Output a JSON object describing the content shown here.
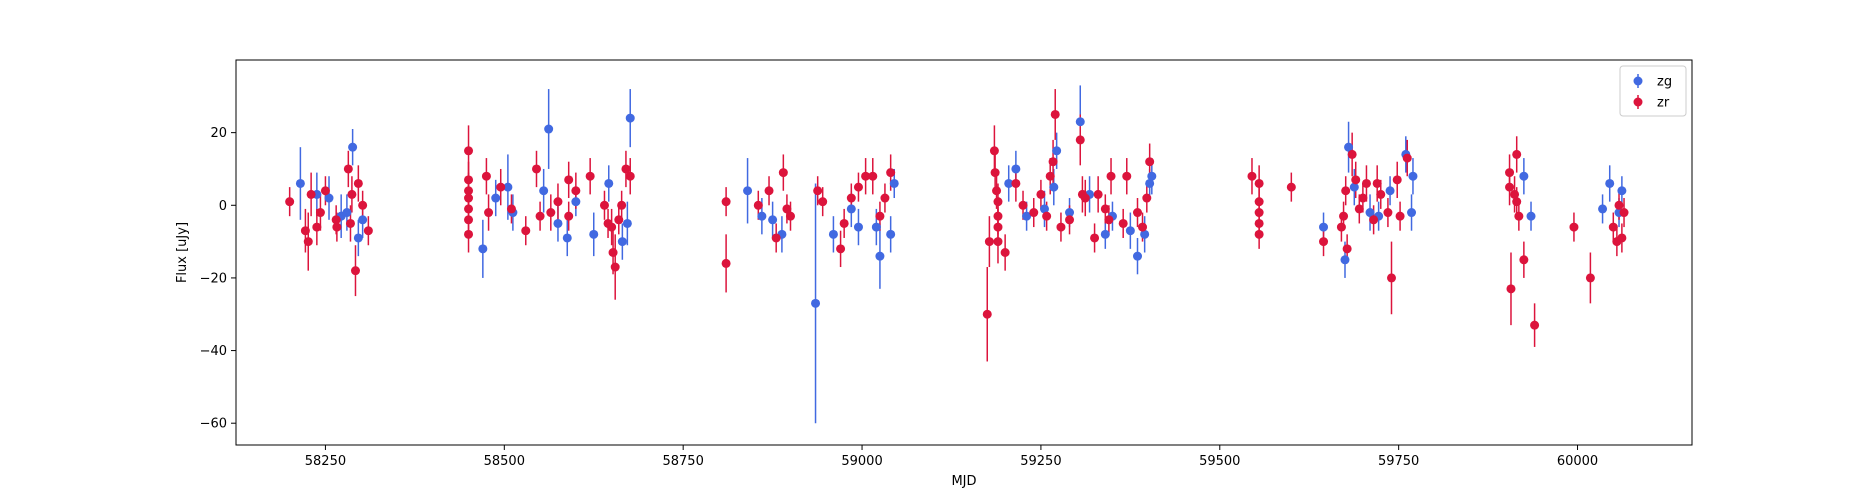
{
  "chart_data": {
    "type": "scatter",
    "title": "",
    "xlabel": "MJD",
    "ylabel": "Flux [uJy]",
    "xlim": [
      58125,
      60160
    ],
    "ylim": [
      -66,
      40
    ],
    "xticks": [
      58250,
      58500,
      58750,
      59000,
      59250,
      59500,
      59750,
      60000
    ],
    "yticks": [
      20,
      0,
      -20,
      -40,
      -60
    ],
    "grid": false,
    "legend_position": "top-right",
    "error_bars": true,
    "series": [
      {
        "name": "zg",
        "color": "#4169e1",
        "points": [
          {
            "x": 58215,
            "y": 6,
            "err": 10
          },
          {
            "x": 58238,
            "y": 3,
            "err": 6
          },
          {
            "x": 58255,
            "y": 2,
            "err": 6
          },
          {
            "x": 58272,
            "y": -3,
            "err": 6
          },
          {
            "x": 58280,
            "y": -2,
            "err": 5
          },
          {
            "x": 58288,
            "y": 16,
            "err": 5
          },
          {
            "x": 58296,
            "y": -9,
            "err": 5
          },
          {
            "x": 58302,
            "y": -4,
            "err": 5
          },
          {
            "x": 58470,
            "y": -12,
            "err": 8
          },
          {
            "x": 58488,
            "y": 2,
            "err": 5
          },
          {
            "x": 58505,
            "y": 5,
            "err": 9
          },
          {
            "x": 58512,
            "y": -2,
            "err": 5
          },
          {
            "x": 58555,
            "y": 4,
            "err": 6
          },
          {
            "x": 58562,
            "y": 21,
            "err": 11
          },
          {
            "x": 58575,
            "y": -5,
            "err": 5
          },
          {
            "x": 58588,
            "y": -9,
            "err": 5
          },
          {
            "x": 58600,
            "y": 1,
            "err": 4
          },
          {
            "x": 58625,
            "y": -8,
            "err": 6
          },
          {
            "x": 58646,
            "y": 6,
            "err": 5
          },
          {
            "x": 58665,
            "y": -10,
            "err": 5
          },
          {
            "x": 58672,
            "y": -5,
            "err": 6
          },
          {
            "x": 58676,
            "y": 24,
            "err": 8
          },
          {
            "x": 58840,
            "y": 4,
            "err": 9
          },
          {
            "x": 58860,
            "y": -3,
            "err": 5
          },
          {
            "x": 58875,
            "y": -4,
            "err": 5
          },
          {
            "x": 58888,
            "y": -8,
            "err": 5
          },
          {
            "x": 58935,
            "y": -27,
            "err": 33
          },
          {
            "x": 58960,
            "y": -8,
            "err": 5
          },
          {
            "x": 58985,
            "y": -1,
            "err": 5
          },
          {
            "x": 58995,
            "y": -6,
            "err": 5
          },
          {
            "x": 59020,
            "y": -6,
            "err": 5
          },
          {
            "x": 59025,
            "y": -14,
            "err": 9
          },
          {
            "x": 59040,
            "y": -8,
            "err": 5
          },
          {
            "x": 59045,
            "y": 6,
            "err": 4
          },
          {
            "x": 59205,
            "y": 6,
            "err": 5
          },
          {
            "x": 59215,
            "y": 10,
            "err": 5
          },
          {
            "x": 59230,
            "y": -3,
            "err": 4
          },
          {
            "x": 59255,
            "y": -1,
            "err": 5
          },
          {
            "x": 59268,
            "y": 5,
            "err": 5
          },
          {
            "x": 59272,
            "y": 15,
            "err": 5
          },
          {
            "x": 59290,
            "y": -2,
            "err": 4
          },
          {
            "x": 59305,
            "y": 23,
            "err": 10
          },
          {
            "x": 59318,
            "y": 3,
            "err": 5
          },
          {
            "x": 59340,
            "y": -8,
            "err": 4
          },
          {
            "x": 59350,
            "y": -3,
            "err": 4
          },
          {
            "x": 59375,
            "y": -7,
            "err": 5
          },
          {
            "x": 59385,
            "y": -14,
            "err": 5
          },
          {
            "x": 59395,
            "y": -8,
            "err": 5
          },
          {
            "x": 59402,
            "y": 6,
            "err": 4
          },
          {
            "x": 59405,
            "y": 8,
            "err": 5
          },
          {
            "x": 59645,
            "y": -6,
            "err": 4
          },
          {
            "x": 59675,
            "y": -15,
            "err": 5
          },
          {
            "x": 59680,
            "y": 16,
            "err": 7
          },
          {
            "x": 59688,
            "y": 5,
            "err": 5
          },
          {
            "x": 59710,
            "y": -2,
            "err": 5
          },
          {
            "x": 59722,
            "y": -3,
            "err": 4
          },
          {
            "x": 59738,
            "y": 4,
            "err": 4
          },
          {
            "x": 59760,
            "y": 14,
            "err": 5
          },
          {
            "x": 59768,
            "y": -2,
            "err": 5
          },
          {
            "x": 59770,
            "y": 8,
            "err": 5
          },
          {
            "x": 59925,
            "y": 8,
            "err": 5
          },
          {
            "x": 59935,
            "y": -3,
            "err": 4
          },
          {
            "x": 60035,
            "y": -1,
            "err": 4
          },
          {
            "x": 60045,
            "y": 6,
            "err": 5
          },
          {
            "x": 60058,
            "y": -2,
            "err": 4
          },
          {
            "x": 60062,
            "y": 4,
            "err": 4
          }
        ]
      },
      {
        "name": "zr",
        "color": "#dc143c",
        "points": [
          {
            "x": 58200,
            "y": 1,
            "err": 4
          },
          {
            "x": 58222,
            "y": -7,
            "err": 6
          },
          {
            "x": 58226,
            "y": -10,
            "err": 8
          },
          {
            "x": 58230,
            "y": 3,
            "err": 6
          },
          {
            "x": 58238,
            "y": -6,
            "err": 5
          },
          {
            "x": 58243,
            "y": -2,
            "err": 5
          },
          {
            "x": 58250,
            "y": 4,
            "err": 4
          },
          {
            "x": 58265,
            "y": -4,
            "err": 4
          },
          {
            "x": 58266,
            "y": -6,
            "err": 4
          },
          {
            "x": 58282,
            "y": 10,
            "err": 5
          },
          {
            "x": 58285,
            "y": -5,
            "err": 5
          },
          {
            "x": 58287,
            "y": 3,
            "err": 5
          },
          {
            "x": 58292,
            "y": -18,
            "err": 7
          },
          {
            "x": 58296,
            "y": 6,
            "err": 5
          },
          {
            "x": 58302,
            "y": 0,
            "err": 4
          },
          {
            "x": 58310,
            "y": -7,
            "err": 4
          },
          {
            "x": 58450,
            "y": 15,
            "err": 7
          },
          {
            "x": 58450,
            "y": 7,
            "err": 5
          },
          {
            "x": 58450,
            "y": 4,
            "err": 5
          },
          {
            "x": 58450,
            "y": 2,
            "err": 4
          },
          {
            "x": 58450,
            "y": -1,
            "err": 4
          },
          {
            "x": 58450,
            "y": -4,
            "err": 4
          },
          {
            "x": 58450,
            "y": -8,
            "err": 5
          },
          {
            "x": 58475,
            "y": 8,
            "err": 5
          },
          {
            "x": 58478,
            "y": -2,
            "err": 5
          },
          {
            "x": 58495,
            "y": 5,
            "err": 5
          },
          {
            "x": 58510,
            "y": -1,
            "err": 4
          },
          {
            "x": 58530,
            "y": -7,
            "err": 4
          },
          {
            "x": 58545,
            "y": 10,
            "err": 5
          },
          {
            "x": 58550,
            "y": -3,
            "err": 4
          },
          {
            "x": 58565,
            "y": -2,
            "err": 5
          },
          {
            "x": 58575,
            "y": 1,
            "err": 5
          },
          {
            "x": 58590,
            "y": -3,
            "err": 4
          },
          {
            "x": 58590,
            "y": 7,
            "err": 5
          },
          {
            "x": 58600,
            "y": 4,
            "err": 5
          },
          {
            "x": 58620,
            "y": 8,
            "err": 5
          },
          {
            "x": 58640,
            "y": 0,
            "err": 4
          },
          {
            "x": 58645,
            "y": -5,
            "err": 4
          },
          {
            "x": 58650,
            "y": -6,
            "err": 5
          },
          {
            "x": 58652,
            "y": -13,
            "err": 6
          },
          {
            "x": 58655,
            "y": -17,
            "err": 9
          },
          {
            "x": 58660,
            "y": -4,
            "err": 4
          },
          {
            "x": 58664,
            "y": 0,
            "err": 4
          },
          {
            "x": 58670,
            "y": 10,
            "err": 5
          },
          {
            "x": 58676,
            "y": 8,
            "err": 5
          },
          {
            "x": 58810,
            "y": 1,
            "err": 4
          },
          {
            "x": 58810,
            "y": -16,
            "err": 8
          },
          {
            "x": 58855,
            "y": 0,
            "err": 4
          },
          {
            "x": 58870,
            "y": 4,
            "err": 4
          },
          {
            "x": 58880,
            "y": -9,
            "err": 4
          },
          {
            "x": 58890,
            "y": 9,
            "err": 5
          },
          {
            "x": 58895,
            "y": -1,
            "err": 4
          },
          {
            "x": 58900,
            "y": -3,
            "err": 4
          },
          {
            "x": 58938,
            "y": 4,
            "err": 4
          },
          {
            "x": 58945,
            "y": 1,
            "err": 4
          },
          {
            "x": 58970,
            "y": -12,
            "err": 5
          },
          {
            "x": 58975,
            "y": -5,
            "err": 4
          },
          {
            "x": 58985,
            "y": 2,
            "err": 4
          },
          {
            "x": 58995,
            "y": 5,
            "err": 4
          },
          {
            "x": 59005,
            "y": 8,
            "err": 5
          },
          {
            "x": 59015,
            "y": 8,
            "err": 5
          },
          {
            "x": 59025,
            "y": -3,
            "err": 4
          },
          {
            "x": 59032,
            "y": 2,
            "err": 4
          },
          {
            "x": 59040,
            "y": 9,
            "err": 5
          },
          {
            "x": 59175,
            "y": -30,
            "err": 13
          },
          {
            "x": 59178,
            "y": -10,
            "err": 7
          },
          {
            "x": 59185,
            "y": 15,
            "err": 7
          },
          {
            "x": 59186,
            "y": 9,
            "err": 6
          },
          {
            "x": 59188,
            "y": 4,
            "err": 5
          },
          {
            "x": 59190,
            "y": 1,
            "err": 5
          },
          {
            "x": 59190,
            "y": -3,
            "err": 5
          },
          {
            "x": 59190,
            "y": -6,
            "err": 5
          },
          {
            "x": 59190,
            "y": -10,
            "err": 6
          },
          {
            "x": 59200,
            "y": -13,
            "err": 5
          },
          {
            "x": 59215,
            "y": 6,
            "err": 5
          },
          {
            "x": 59225,
            "y": 0,
            "err": 4
          },
          {
            "x": 59240,
            "y": -2,
            "err": 4
          },
          {
            "x": 59250,
            "y": 3,
            "err": 4
          },
          {
            "x": 59258,
            "y": -3,
            "err": 4
          },
          {
            "x": 59263,
            "y": 8,
            "err": 5
          },
          {
            "x": 59267,
            "y": 12,
            "err": 6
          },
          {
            "x": 59270,
            "y": 25,
            "err": 7
          },
          {
            "x": 59278,
            "y": -6,
            "err": 4
          },
          {
            "x": 59290,
            "y": -4,
            "err": 4
          },
          {
            "x": 59305,
            "y": 18,
            "err": 7
          },
          {
            "x": 59308,
            "y": 3,
            "err": 5
          },
          {
            "x": 59312,
            "y": 2,
            "err": 5
          },
          {
            "x": 59325,
            "y": -9,
            "err": 4
          },
          {
            "x": 59330,
            "y": 3,
            "err": 5
          },
          {
            "x": 59340,
            "y": -1,
            "err": 4
          },
          {
            "x": 59345,
            "y": -4,
            "err": 4
          },
          {
            "x": 59348,
            "y": 8,
            "err": 5
          },
          {
            "x": 59365,
            "y": -5,
            "err": 4
          },
          {
            "x": 59370,
            "y": 8,
            "err": 5
          },
          {
            "x": 59385,
            "y": -2,
            "err": 4
          },
          {
            "x": 59392,
            "y": -6,
            "err": 4
          },
          {
            "x": 59398,
            "y": 2,
            "err": 4
          },
          {
            "x": 59402,
            "y": 12,
            "err": 5
          },
          {
            "x": 59545,
            "y": 8,
            "err": 5
          },
          {
            "x": 59555,
            "y": 6,
            "err": 5
          },
          {
            "x": 59555,
            "y": 1,
            "err": 4
          },
          {
            "x": 59555,
            "y": -2,
            "err": 4
          },
          {
            "x": 59555,
            "y": -5,
            "err": 4
          },
          {
            "x": 59555,
            "y": -8,
            "err": 4
          },
          {
            "x": 59600,
            "y": 5,
            "err": 4
          },
          {
            "x": 59645,
            "y": -10,
            "err": 4
          },
          {
            "x": 59670,
            "y": -6,
            "err": 4
          },
          {
            "x": 59673,
            "y": -3,
            "err": 4
          },
          {
            "x": 59676,
            "y": 4,
            "err": 4
          },
          {
            "x": 59678,
            "y": -12,
            "err": 4
          },
          {
            "x": 59685,
            "y": 14,
            "err": 6
          },
          {
            "x": 59690,
            "y": 7,
            "err": 5
          },
          {
            "x": 59695,
            "y": -1,
            "err": 4
          },
          {
            "x": 59700,
            "y": 2,
            "err": 4
          },
          {
            "x": 59705,
            "y": 6,
            "err": 5
          },
          {
            "x": 59715,
            "y": -4,
            "err": 4
          },
          {
            "x": 59720,
            "y": 6,
            "err": 5
          },
          {
            "x": 59725,
            "y": 3,
            "err": 4
          },
          {
            "x": 59735,
            "y": -2,
            "err": 4
          },
          {
            "x": 59740,
            "y": -20,
            "err": 10
          },
          {
            "x": 59748,
            "y": 7,
            "err": 5
          },
          {
            "x": 59752,
            "y": -3,
            "err": 4
          },
          {
            "x": 59762,
            "y": 13,
            "err": 5
          },
          {
            "x": 59905,
            "y": 9,
            "err": 5
          },
          {
            "x": 59905,
            "y": 5,
            "err": 5
          },
          {
            "x": 59907,
            "y": -23,
            "err": 10
          },
          {
            "x": 59912,
            "y": 3,
            "err": 5
          },
          {
            "x": 59915,
            "y": 14,
            "err": 5
          },
          {
            "x": 59915,
            "y": 1,
            "err": 4
          },
          {
            "x": 59918,
            "y": -3,
            "err": 4
          },
          {
            "x": 59925,
            "y": -15,
            "err": 5
          },
          {
            "x": 59940,
            "y": -33,
            "err": 6
          },
          {
            "x": 59995,
            "y": -6,
            "err": 4
          },
          {
            "x": 60018,
            "y": -20,
            "err": 7
          },
          {
            "x": 60050,
            "y": -6,
            "err": 4
          },
          {
            "x": 60055,
            "y": -10,
            "err": 4
          },
          {
            "x": 60058,
            "y": 0,
            "err": 4
          },
          {
            "x": 60062,
            "y": -9,
            "err": 4
          },
          {
            "x": 60065,
            "y": -2,
            "err": 4
          }
        ]
      }
    ]
  }
}
